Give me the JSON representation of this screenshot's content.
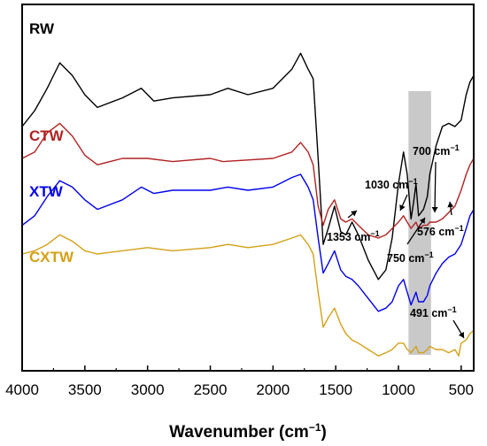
{
  "chart_data": {
    "type": "line",
    "title": "",
    "xlabel": "Wavenumber (cm",
    "xlabel_sup": "−1",
    "xlabel_end": ")",
    "xlim": [
      4000,
      400
    ],
    "x_reversed": true,
    "xticks": [
      4000,
      3500,
      3000,
      2500,
      2000,
      1500,
      1000,
      500
    ],
    "ylabel": "",
    "y_ticks_shown": false,
    "grid": false,
    "legend": "inline-left-labels",
    "highlight_band": {
      "x_from": 920,
      "x_to": 740,
      "color": "#c0c0c0"
    },
    "series": [
      {
        "name": "RW",
        "color": "#000000",
        "label_color": "#000000",
        "points": [
          [
            4000,
            0.7
          ],
          [
            3900,
            0.75
          ],
          [
            3800,
            0.82
          ],
          [
            3700,
            0.9
          ],
          [
            3600,
            0.86
          ],
          [
            3500,
            0.8
          ],
          [
            3400,
            0.76
          ],
          [
            3200,
            0.79
          ],
          [
            3050,
            0.82
          ],
          [
            2950,
            0.78
          ],
          [
            2800,
            0.79
          ],
          [
            2500,
            0.8
          ],
          [
            2360,
            0.82
          ],
          [
            2200,
            0.8
          ],
          [
            2000,
            0.82
          ],
          [
            1850,
            0.88
          ],
          [
            1780,
            0.93
          ],
          [
            1720,
            0.88
          ],
          [
            1680,
            0.85
          ],
          [
            1640,
            0.6
          ],
          [
            1600,
            0.33
          ],
          [
            1560,
            0.38
          ],
          [
            1510,
            0.45
          ],
          [
            1460,
            0.37
          ],
          [
            1420,
            0.36
          ],
          [
            1370,
            0.4
          ],
          [
            1320,
            0.36
          ],
          [
            1240,
            0.28
          ],
          [
            1160,
            0.22
          ],
          [
            1100,
            0.25
          ],
          [
            1050,
            0.35
          ],
          [
            1000,
            0.52
          ],
          [
            960,
            0.62
          ],
          [
            930,
            0.55
          ],
          [
            900,
            0.41
          ],
          [
            880,
            0.46
          ],
          [
            860,
            0.52
          ],
          [
            840,
            0.42
          ],
          [
            800,
            0.44
          ],
          [
            770,
            0.48
          ],
          [
            750,
            0.55
          ],
          [
            700,
            0.64
          ],
          [
            650,
            0.7
          ],
          [
            600,
            0.71
          ],
          [
            550,
            0.7
          ],
          [
            500,
            0.72
          ],
          [
            460,
            0.8
          ],
          [
            430,
            0.84
          ],
          [
            400,
            0.86
          ]
        ]
      },
      {
        "name": "CTW",
        "color": "#b22222",
        "label_color": "#b22222",
        "points": [
          [
            4000,
            0.6
          ],
          [
            3900,
            0.62
          ],
          [
            3800,
            0.68
          ],
          [
            3700,
            0.71
          ],
          [
            3600,
            0.67
          ],
          [
            3500,
            0.61
          ],
          [
            3400,
            0.58
          ],
          [
            3200,
            0.6
          ],
          [
            3000,
            0.6
          ],
          [
            2800,
            0.59
          ],
          [
            2500,
            0.6
          ],
          [
            2400,
            0.59
          ],
          [
            2000,
            0.6
          ],
          [
            1850,
            0.62
          ],
          [
            1780,
            0.65
          ],
          [
            1720,
            0.62
          ],
          [
            1680,
            0.58
          ],
          [
            1640,
            0.45
          ],
          [
            1600,
            0.39
          ],
          [
            1560,
            0.44
          ],
          [
            1510,
            0.47
          ],
          [
            1460,
            0.41
          ],
          [
            1420,
            0.4
          ],
          [
            1370,
            0.41
          ],
          [
            1320,
            0.39
          ],
          [
            1240,
            0.36
          ],
          [
            1160,
            0.35
          ],
          [
            1100,
            0.36
          ],
          [
            1050,
            0.38
          ],
          [
            1000,
            0.4
          ],
          [
            960,
            0.42
          ],
          [
            930,
            0.4
          ],
          [
            900,
            0.38
          ],
          [
            880,
            0.39
          ],
          [
            860,
            0.4
          ],
          [
            840,
            0.38
          ],
          [
            800,
            0.39
          ],
          [
            770,
            0.39
          ],
          [
            750,
            0.4
          ],
          [
            700,
            0.4
          ],
          [
            650,
            0.41
          ],
          [
            600,
            0.43
          ],
          [
            550,
            0.45
          ],
          [
            500,
            0.5
          ],
          [
            460,
            0.55
          ],
          [
            430,
            0.58
          ],
          [
            400,
            0.6
          ]
        ]
      },
      {
        "name": "XTW",
        "color": "#0000ee",
        "label_color": "#0000ee",
        "points": [
          [
            4000,
            0.39
          ],
          [
            3900,
            0.42
          ],
          [
            3800,
            0.48
          ],
          [
            3700,
            0.53
          ],
          [
            3600,
            0.51
          ],
          [
            3500,
            0.47
          ],
          [
            3400,
            0.44
          ],
          [
            3200,
            0.47
          ],
          [
            3050,
            0.51
          ],
          [
            2950,
            0.49
          ],
          [
            2800,
            0.5
          ],
          [
            2500,
            0.5
          ],
          [
            2360,
            0.51
          ],
          [
            2200,
            0.5
          ],
          [
            2000,
            0.51
          ],
          [
            1850,
            0.54
          ],
          [
            1780,
            0.55
          ],
          [
            1720,
            0.51
          ],
          [
            1680,
            0.47
          ],
          [
            1640,
            0.35
          ],
          [
            1600,
            0.24
          ],
          [
            1560,
            0.27
          ],
          [
            1510,
            0.31
          ],
          [
            1460,
            0.25
          ],
          [
            1420,
            0.23
          ],
          [
            1370,
            0.22
          ],
          [
            1320,
            0.2
          ],
          [
            1240,
            0.16
          ],
          [
            1160,
            0.12
          ],
          [
            1100,
            0.13
          ],
          [
            1050,
            0.15
          ],
          [
            1000,
            0.2
          ],
          [
            960,
            0.22
          ],
          [
            930,
            0.18
          ],
          [
            900,
            0.14
          ],
          [
            880,
            0.16
          ],
          [
            860,
            0.18
          ],
          [
            840,
            0.15
          ],
          [
            800,
            0.15
          ],
          [
            770,
            0.17
          ],
          [
            750,
            0.2
          ],
          [
            700,
            0.24
          ],
          [
            650,
            0.27
          ],
          [
            600,
            0.29
          ],
          [
            550,
            0.3
          ],
          [
            500,
            0.33
          ],
          [
            460,
            0.38
          ],
          [
            430,
            0.42
          ],
          [
            400,
            0.44
          ]
        ]
      },
      {
        "name": "CXTW",
        "color": "#d4a017",
        "label_color": "#d4a017",
        "points": [
          [
            4000,
            0.3
          ],
          [
            3900,
            0.31
          ],
          [
            3800,
            0.33
          ],
          [
            3700,
            0.36
          ],
          [
            3600,
            0.34
          ],
          [
            3500,
            0.31
          ],
          [
            3400,
            0.3
          ],
          [
            3200,
            0.31
          ],
          [
            3000,
            0.32
          ],
          [
            2800,
            0.31
          ],
          [
            2500,
            0.32
          ],
          [
            2360,
            0.33
          ],
          [
            2200,
            0.32
          ],
          [
            2000,
            0.33
          ],
          [
            1850,
            0.35
          ],
          [
            1780,
            0.36
          ],
          [
            1720,
            0.33
          ],
          [
            1680,
            0.3
          ],
          [
            1640,
            0.18
          ],
          [
            1600,
            0.07
          ],
          [
            1560,
            0.1
          ],
          [
            1510,
            0.13
          ],
          [
            1460,
            0.08
          ],
          [
            1420,
            0.05
          ],
          [
            1370,
            0.03
          ],
          [
            1320,
            0.02
          ],
          [
            1240,
            0.0
          ],
          [
            1160,
            -0.02
          ],
          [
            1100,
            -0.01
          ],
          [
            1050,
            0.0
          ],
          [
            1000,
            0.02
          ],
          [
            960,
            0.02
          ],
          [
            930,
            0.0
          ],
          [
            900,
            -0.01
          ],
          [
            880,
            0.0
          ],
          [
            860,
            0.01
          ],
          [
            840,
            -0.01
          ],
          [
            800,
            -0.01
          ],
          [
            770,
            0.0
          ],
          [
            750,
            0.01
          ],
          [
            700,
            0.0
          ],
          [
            650,
            0.0
          ],
          [
            600,
            -0.01
          ],
          [
            550,
            0.0
          ],
          [
            520,
            -0.02
          ],
          [
            500,
            0.02
          ],
          [
            460,
            0.03
          ],
          [
            430,
            0.05
          ],
          [
            400,
            0.06
          ]
        ]
      }
    ],
    "annotations": [
      {
        "text": "700 cm",
        "sup": "−1",
        "x": 700
      },
      {
        "text": "1030 cm",
        "sup": "−1",
        "x": 1030
      },
      {
        "text": "576 cm",
        "sup": "−1",
        "x": 576
      },
      {
        "text": "1353 cm",
        "sup": "−1",
        "x": 1353
      },
      {
        "text": "750 cm",
        "sup": "−1",
        "x": 750
      },
      {
        "text": "491 cm",
        "sup": "−1",
        "x": 491
      }
    ]
  }
}
